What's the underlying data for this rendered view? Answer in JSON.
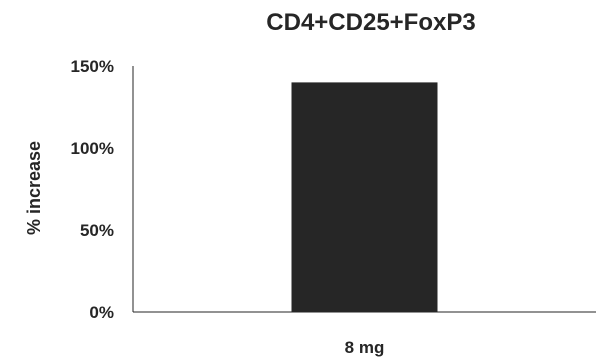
{
  "chart_data": {
    "type": "bar",
    "title": "CD4+CD25+FoxP3",
    "xlabel": "",
    "ylabel": "% increase",
    "categories": [
      "8 mg"
    ],
    "values": [
      140
    ],
    "ylim": [
      0,
      150
    ],
    "yticks": [
      0,
      50,
      100,
      150
    ],
    "ytick_labels": [
      "0%",
      "50%",
      "100%",
      "150%"
    ],
    "grid": false,
    "legend": "none",
    "bar_color": "#262626",
    "axis_color": "#262626"
  }
}
